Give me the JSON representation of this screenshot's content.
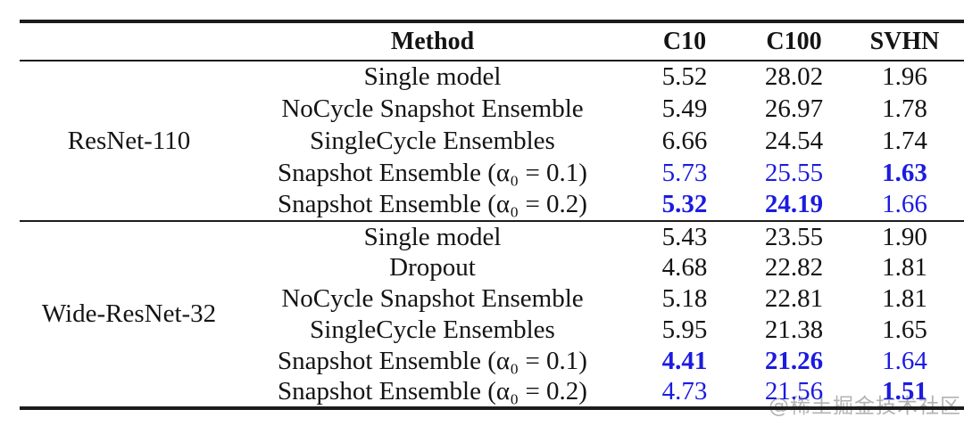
{
  "colors": {
    "text": "#141414",
    "accent_blue": "#1b1be0",
    "rule": "#1c1c1c",
    "watermark_gray": "#b3b3b3",
    "background": "#ffffff"
  },
  "table": {
    "header": {
      "method": "Method",
      "c10": "C10",
      "c100": "C100",
      "svhn": "SVHN"
    },
    "groups": [
      {
        "model": "ResNet-110",
        "rows": [
          {
            "method": "Single model",
            "c10": {
              "v": "5.52",
              "s": ""
            },
            "c100": {
              "v": "28.02",
              "s": ""
            },
            "svhn": {
              "v": "1.96",
              "s": ""
            }
          },
          {
            "method": "NoCycle Snapshot Ensemble",
            "c10": {
              "v": "5.49",
              "s": ""
            },
            "c100": {
              "v": "26.97",
              "s": ""
            },
            "svhn": {
              "v": "1.78",
              "s": ""
            }
          },
          {
            "method": "SingleCycle Ensembles",
            "c10": {
              "v": "6.66",
              "s": ""
            },
            "c100": {
              "v": "24.54",
              "s": ""
            },
            "svhn": {
              "v": "1.74",
              "s": ""
            }
          },
          {
            "method": "Snapshot Ensemble (α₀ = 0.1)",
            "c10": {
              "v": "5.73",
              "s": "blue"
            },
            "c100": {
              "v": "25.55",
              "s": "blue"
            },
            "svhn": {
              "v": "1.63",
              "s": "blue bold"
            }
          },
          {
            "method": "Snapshot Ensemble (α₀ = 0.2)",
            "c10": {
              "v": "5.32",
              "s": "blue bold"
            },
            "c100": {
              "v": "24.19",
              "s": "blue bold"
            },
            "svhn": {
              "v": "1.66",
              "s": "blue"
            }
          }
        ]
      },
      {
        "model": "Wide-ResNet-32",
        "rows": [
          {
            "method": "Single model",
            "c10": {
              "v": "5.43",
              "s": ""
            },
            "c100": {
              "v": "23.55",
              "s": ""
            },
            "svhn": {
              "v": "1.90",
              "s": ""
            }
          },
          {
            "method": "Dropout",
            "c10": {
              "v": "4.68",
              "s": ""
            },
            "c100": {
              "v": "22.82",
              "s": ""
            },
            "svhn": {
              "v": "1.81",
              "s": ""
            }
          },
          {
            "method": "NoCycle Snapshot Ensemble",
            "c10": {
              "v": "5.18",
              "s": ""
            },
            "c100": {
              "v": "22.81",
              "s": ""
            },
            "svhn": {
              "v": "1.81",
              "s": ""
            }
          },
          {
            "method": "SingleCycle Ensembles",
            "c10": {
              "v": "5.95",
              "s": ""
            },
            "c100": {
              "v": "21.38",
              "s": ""
            },
            "svhn": {
              "v": "1.65",
              "s": ""
            }
          },
          {
            "method": "Snapshot Ensemble (α₀ = 0.1)",
            "c10": {
              "v": "4.41",
              "s": "blue bold"
            },
            "c100": {
              "v": "21.26",
              "s": "blue bold"
            },
            "svhn": {
              "v": "1.64",
              "s": "blue"
            }
          },
          {
            "method": "Snapshot Ensemble (α₀ = 0.2)",
            "c10": {
              "v": "4.73",
              "s": "blue"
            },
            "c100": {
              "v": "21.56",
              "s": "blue"
            },
            "svhn": {
              "v": "1.51",
              "s": "blue bold"
            }
          }
        ]
      }
    ]
  },
  "watermark": {
    "text": "@稀土掘金技术社区"
  }
}
